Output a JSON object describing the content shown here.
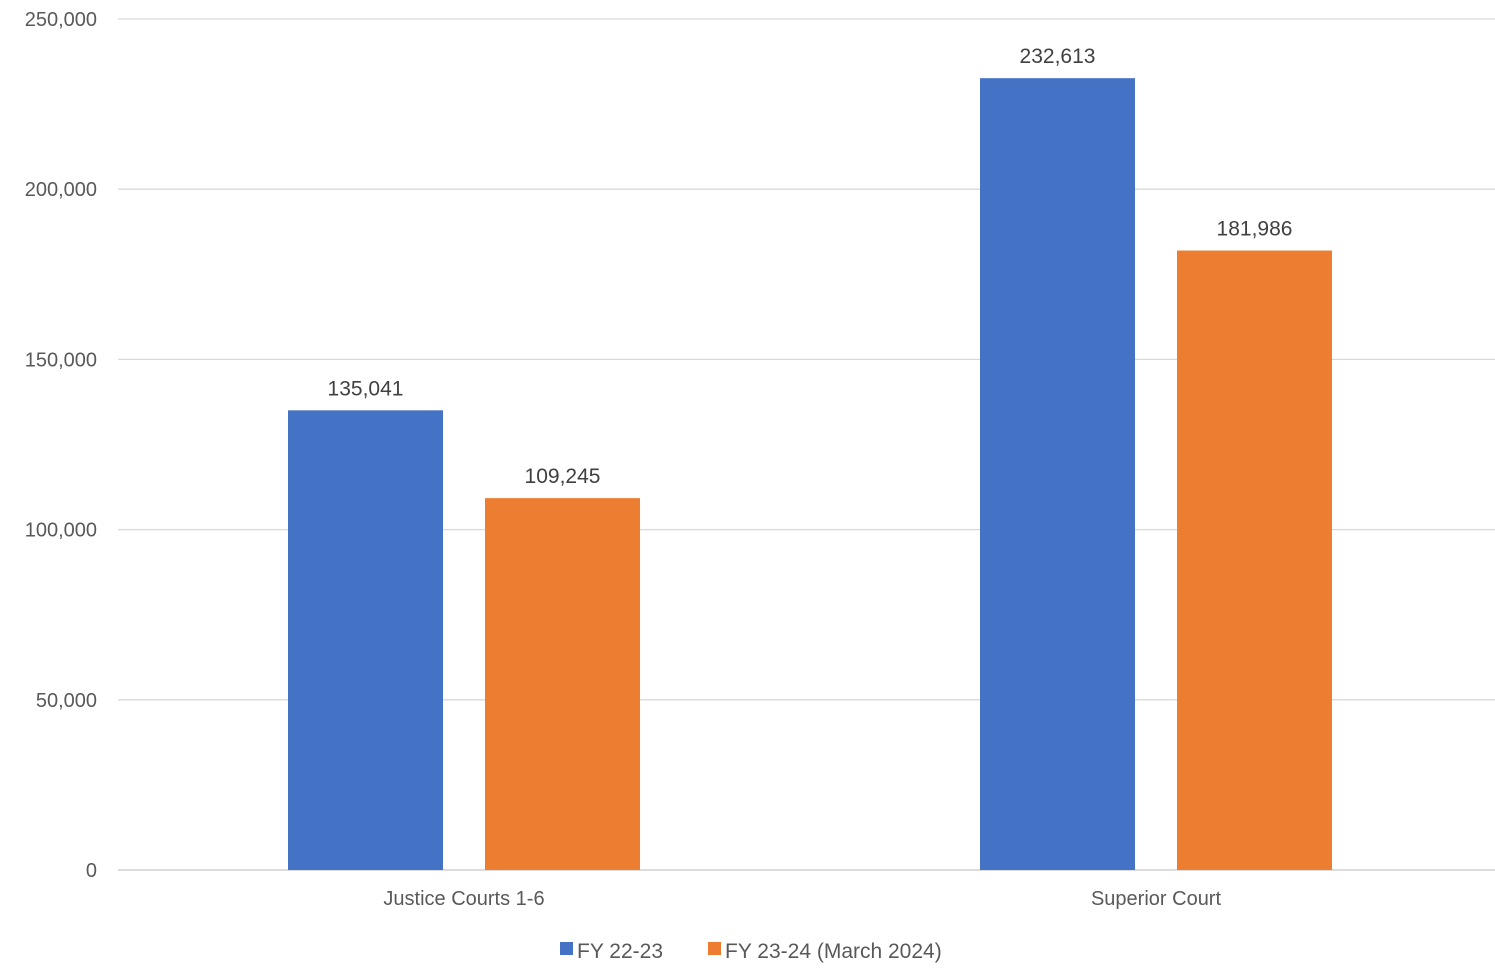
{
  "chart_data": {
    "type": "bar",
    "title": "",
    "xlabel": "",
    "ylabel": "",
    "categories": [
      "Justice Courts 1-6",
      "Superior Court"
    ],
    "series": [
      {
        "name": "FY 22-23",
        "color": "#4472c4",
        "values": [
          135041,
          109245
        ]
      },
      {
        "name": "FY 23-24 (March 2024)",
        "color": "#ed7d31",
        "values": [
          232613,
          181986
        ]
      }
    ],
    "data_labels": [
      [
        "135,041",
        "109,245"
      ],
      [
        "232,613",
        "181,986"
      ]
    ],
    "ylim": [
      0,
      250000
    ],
    "yticks": [
      0,
      50000,
      100000,
      150000,
      200000,
      250000
    ],
    "ytick_labels": [
      "0",
      "50,000",
      "100,000",
      "150,000",
      "200,000",
      "250,000"
    ],
    "grid": true,
    "legend_position": "bottom"
  }
}
